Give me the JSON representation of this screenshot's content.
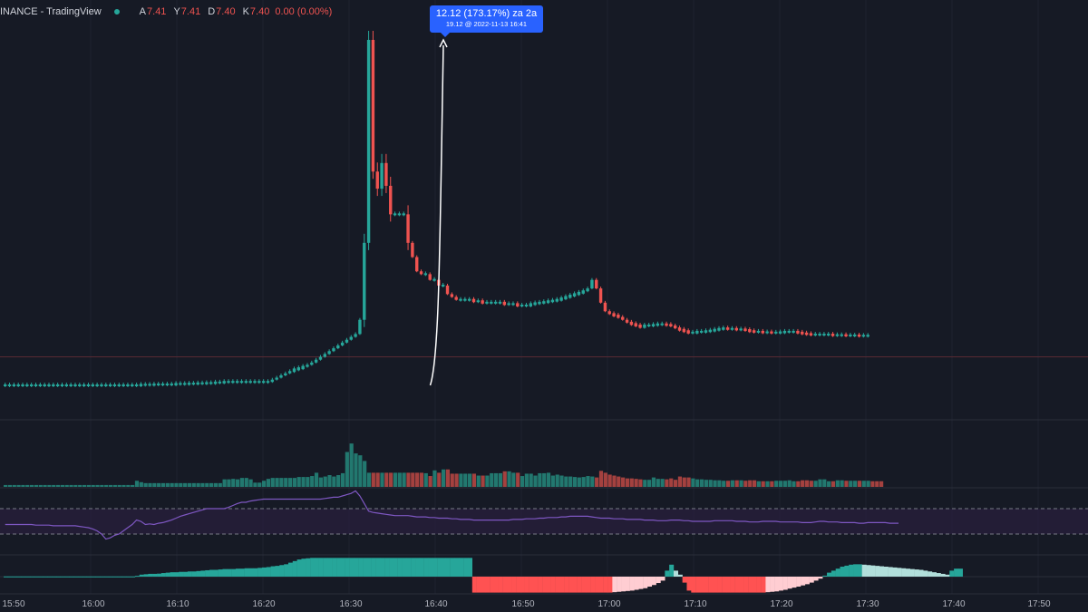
{
  "header": {
    "title": "INANCE - TradingView",
    "ohlc": [
      {
        "key": "A",
        "value": "7.41"
      },
      {
        "key": "Y",
        "value": "7.41"
      },
      {
        "key": "D",
        "value": "7.40"
      },
      {
        "key": "K",
        "value": "7.40"
      }
    ],
    "change": "0.00 (0.00%)"
  },
  "measure": {
    "line1": "12.12 (173.17%) za 2a",
    "line2": "19.12 @ 2022-11-13  16:41"
  },
  "time_axis": [
    "15:50",
    "16:00",
    "16:10",
    "16:20",
    "16:30",
    "16:40",
    "16:50",
    "17:00",
    "17:10",
    "17:20",
    "17:30",
    "17:40",
    "17:50"
  ],
  "colors": {
    "background": "#161a25",
    "up": "#26a69a",
    "down": "#ef5350",
    "rsi": "#7e57c2",
    "accent": "#2962ff"
  },
  "chart_data": {
    "type": "candlestick",
    "price_close": [
      7.0,
      7.0,
      7.0,
      7.0,
      7.0,
      7.0,
      7.0,
      7.0,
      7.0,
      7.0,
      7.0,
      7.0,
      7.0,
      7.0,
      7.0,
      7.0,
      7.0,
      7.0,
      7.0,
      7.0,
      7.0,
      7.0,
      7.0,
      7.0,
      7.0,
      7.0,
      7.0,
      7.0,
      7.0,
      7.0,
      7.0,
      7.02,
      7.02,
      7.02,
      7.03,
      7.03,
      7.03,
      7.03,
      7.03,
      7.05,
      7.05,
      7.05,
      7.06,
      7.06,
      7.07,
      7.07,
      7.08,
      7.08,
      7.1,
      7.1,
      7.12,
      7.12,
      7.12,
      7.12,
      7.12,
      7.12,
      7.12,
      7.12,
      7.12,
      7.12,
      7.12,
      7.2,
      7.27,
      7.35,
      7.42,
      7.5,
      7.56,
      7.6,
      7.65,
      7.72,
      7.8,
      7.9,
      8.0,
      8.1,
      8.2,
      8.3,
      8.4,
      8.5,
      8.6,
      8.7,
      8.8,
      9.3,
      12.0,
      19.12,
      14.5,
      13.9,
      14.8,
      14.0,
      13.0,
      13.0,
      13.0,
      13.0,
      12.0,
      11.5,
      11.0,
      10.9,
      10.9,
      10.7,
      10.7,
      10.5,
      10.5,
      10.2,
      10.1,
      10.0,
      10.0,
      10.0,
      10.0,
      9.95,
      9.95,
      9.9,
      9.9,
      9.9,
      9.9,
      9.9,
      9.85,
      9.85,
      9.85,
      9.8,
      9.8,
      9.8,
      9.85,
      9.88,
      9.9,
      9.92,
      9.95,
      9.97,
      10.0,
      10.05,
      10.1,
      10.15,
      10.2,
      10.25,
      10.3,
      10.4,
      10.7,
      10.4,
      9.9,
      9.6,
      9.5,
      9.45,
      9.4,
      9.3,
      9.2,
      9.15,
      9.1,
      9.05,
      9.1,
      9.1,
      9.12,
      9.14,
      9.14,
      9.12,
      9.1,
      9.0,
      8.95,
      8.9,
      8.85,
      8.85,
      8.88,
      8.88,
      8.9,
      8.92,
      8.95,
      8.98,
      9.0,
      8.98,
      8.98,
      8.96,
      8.96,
      8.94,
      8.9,
      8.88,
      8.88,
      8.86,
      8.86,
      8.85,
      8.85,
      8.86,
      8.88,
      8.88,
      8.88,
      8.85,
      8.82,
      8.8,
      8.78,
      8.78,
      8.78,
      8.78,
      8.78,
      8.76,
      8.76,
      8.76,
      8.75,
      8.75,
      8.75,
      8.74,
      8.74,
      8.74
    ],
    "spike": {
      "low": 7.0,
      "high": 19.12
    },
    "reference_line": 8.0,
    "volume": [
      0.04,
      0.04,
      0.04,
      0.04,
      0.04,
      0.04,
      0.04,
      0.04,
      0.04,
      0.04,
      0.04,
      0.04,
      0.04,
      0.04,
      0.04,
      0.04,
      0.04,
      0.04,
      0.04,
      0.04,
      0.04,
      0.04,
      0.04,
      0.04,
      0.04,
      0.04,
      0.04,
      0.04,
      0.04,
      0.04,
      0.13,
      0.1,
      0.08,
      0.08,
      0.08,
      0.08,
      0.08,
      0.08,
      0.08,
      0.08,
      0.08,
      0.08,
      0.08,
      0.08,
      0.08,
      0.08,
      0.08,
      0.08,
      0.08,
      0.08,
      0.16,
      0.16,
      0.17,
      0.16,
      0.19,
      0.19,
      0.16,
      0.09,
      0.09,
      0.13,
      0.17,
      0.19,
      0.19,
      0.19,
      0.19,
      0.19,
      0.19,
      0.21,
      0.21,
      0.21,
      0.23,
      0.3,
      0.2,
      0.22,
      0.25,
      0.22,
      0.25,
      0.29,
      0.74,
      0.92,
      0.71,
      0.67,
      0.55,
      0.3,
      0.3,
      0.3,
      0.3,
      0.3,
      0.3,
      0.3,
      0.3,
      0.3,
      0.3,
      0.3,
      0.3,
      0.3,
      0.29,
      0.23,
      0.35,
      0.3,
      0.37,
      0.37,
      0.28,
      0.28,
      0.28,
      0.28,
      0.28,
      0.28,
      0.24,
      0.24,
      0.24,
      0.29,
      0.29,
      0.29,
      0.33,
      0.33,
      0.3,
      0.3,
      0.23,
      0.28,
      0.28,
      0.24,
      0.29,
      0.29,
      0.3,
      0.24,
      0.26,
      0.24,
      0.22,
      0.22,
      0.21,
      0.2,
      0.21,
      0.23,
      0.22,
      0.2,
      0.34,
      0.3,
      0.26,
      0.24,
      0.22,
      0.2,
      0.18,
      0.18,
      0.17,
      0.16,
      0.15,
      0.15,
      0.2,
      0.17,
      0.17,
      0.16,
      0.18,
      0.15,
      0.22,
      0.2,
      0.2,
      0.18,
      0.16,
      0.16,
      0.15,
      0.15,
      0.14,
      0.14,
      0.13,
      0.13,
      0.14,
      0.14,
      0.14,
      0.13,
      0.14,
      0.14,
      0.12,
      0.12,
      0.12,
      0.12,
      0.13,
      0.13,
      0.13,
      0.14,
      0.12,
      0.12,
      0.14,
      0.14,
      0.13,
      0.13,
      0.16,
      0.16,
      0.12,
      0.12,
      0.14,
      0.14,
      0.13,
      0.13,
      0.13,
      0.13,
      0.13,
      0.13,
      0.12,
      0.12,
      0.12
    ],
    "rsi_levels": [
      70,
      30
    ],
    "rsi": [
      45,
      45,
      45,
      45,
      45,
      45,
      45,
      44,
      44,
      44,
      44,
      43,
      43,
      43,
      43,
      43,
      43,
      42,
      41,
      40,
      38,
      35,
      30,
      22,
      24,
      28,
      30,
      35,
      40,
      45,
      52,
      50,
      45,
      46,
      45,
      47,
      48,
      50,
      52,
      55,
      58,
      60,
      62,
      64,
      66,
      68,
      70,
      70,
      70,
      70,
      70,
      72,
      75,
      78,
      80,
      80,
      82,
      83,
      84,
      85,
      85,
      85,
      85,
      85,
      85,
      85,
      85,
      85,
      85,
      85,
      85,
      85,
      85,
      86,
      87,
      88,
      88,
      90,
      92,
      94,
      98,
      90,
      78,
      66,
      64,
      63,
      62,
      61,
      60,
      59,
      59,
      59,
      59,
      58,
      57,
      57,
      57,
      56,
      56,
      55,
      55,
      55,
      54,
      54,
      53,
      53,
      53,
      52,
      52,
      52,
      52,
      52,
      52,
      52,
      52,
      52,
      53,
      53,
      53,
      54,
      54,
      54,
      55,
      55,
      56,
      56,
      56,
      57,
      57,
      58,
      58,
      58,
      58,
      58,
      57,
      56,
      55,
      55,
      55,
      54,
      54,
      54,
      53,
      53,
      53,
      53,
      52,
      52,
      52,
      51,
      51,
      51,
      52,
      52,
      52,
      51,
      51,
      50,
      50,
      50,
      50,
      50,
      51,
      51,
      51,
      51,
      51,
      50,
      50,
      50,
      49,
      49,
      49,
      50,
      50,
      50,
      50,
      49,
      49,
      49,
      49,
      49,
      48,
      48,
      48,
      49,
      50,
      50,
      49,
      49,
      49,
      48,
      48,
      48,
      48,
      47,
      47,
      48,
      48,
      48,
      48,
      48,
      47,
      47,
      47
    ],
    "macd_hist": [
      0.01,
      0.01,
      0.01,
      0.01,
      0.01,
      0.01,
      0.01,
      0.01,
      0.01,
      0.01,
      0.01,
      0.01,
      0.01,
      0.01,
      0.01,
      0.01,
      0.01,
      0.01,
      0.01,
      0.01,
      0.01,
      0.01,
      0.01,
      0.01,
      0.01,
      0.01,
      0.01,
      0.01,
      0.01,
      0.01,
      0.04,
      0.1,
      0.12,
      0.14,
      0.14,
      0.15,
      0.18,
      0.2,
      0.22,
      0.22,
      0.24,
      0.24,
      0.26,
      0.26,
      0.28,
      0.3,
      0.32,
      0.34,
      0.34,
      0.36,
      0.38,
      0.38,
      0.38,
      0.4,
      0.4,
      0.42,
      0.42,
      0.42,
      0.44,
      0.46,
      0.48,
      0.52,
      0.54,
      0.58,
      0.62,
      0.7,
      0.78,
      0.86,
      0.9,
      0.92,
      0.94,
      0.94,
      0.94,
      0.94,
      0.94,
      0.94,
      0.94,
      0.94,
      0.94,
      0.94,
      0.94,
      0.94,
      0.94,
      0.94,
      0.94,
      0.94,
      0.94,
      0.94,
      0.94,
      0.94,
      0.94,
      0.94,
      0.94,
      0.94,
      0.94,
      0.94,
      0.94,
      0.94,
      0.94,
      0.94,
      0.94,
      0.94,
      0.94,
      0.94,
      0.94,
      0.94,
      0.94,
      -0.8,
      -0.8,
      -0.8,
      -0.8,
      -0.8,
      -0.8,
      -0.8,
      -0.8,
      -0.8,
      -0.8,
      -0.8,
      -0.8,
      -0.8,
      -0.8,
      -0.8,
      -0.8,
      -0.8,
      -0.8,
      -0.8,
      -0.8,
      -0.8,
      -0.8,
      -0.8,
      -0.8,
      -0.8,
      -0.8,
      -0.8,
      -0.8,
      -0.8,
      -0.8,
      -0.8,
      -0.8,
      -0.78,
      -0.76,
      -0.74,
      -0.72,
      -0.7,
      -0.66,
      -0.62,
      -0.58,
      -0.5,
      -0.42,
      -0.32,
      -0.2,
      0.3,
      0.6,
      0.3,
      0.1,
      -0.3,
      -0.7,
      -0.8,
      -0.8,
      -0.8,
      -0.8,
      -0.8,
      -0.8,
      -0.8,
      -0.8,
      -0.8,
      -0.8,
      -0.8,
      -0.8,
      -0.8,
      -0.8,
      -0.8,
      -0.8,
      -0.8,
      -0.78,
      -0.76,
      -0.74,
      -0.7,
      -0.66,
      -0.6,
      -0.55,
      -0.5,
      -0.44,
      -0.38,
      -0.3,
      -0.2,
      -0.1,
      0.05,
      0.2,
      0.3,
      0.4,
      0.5,
      0.55,
      0.6,
      0.62,
      0.62,
      0.6,
      0.58,
      0.56,
      0.54,
      0.52,
      0.5,
      0.48,
      0.46,
      0.44,
      0.42,
      0.4,
      0.38,
      0.36,
      0.34,
      0.3,
      0.26,
      0.22,
      0.18,
      0.14,
      0.1,
      0.3,
      0.4,
      0.4
    ]
  }
}
